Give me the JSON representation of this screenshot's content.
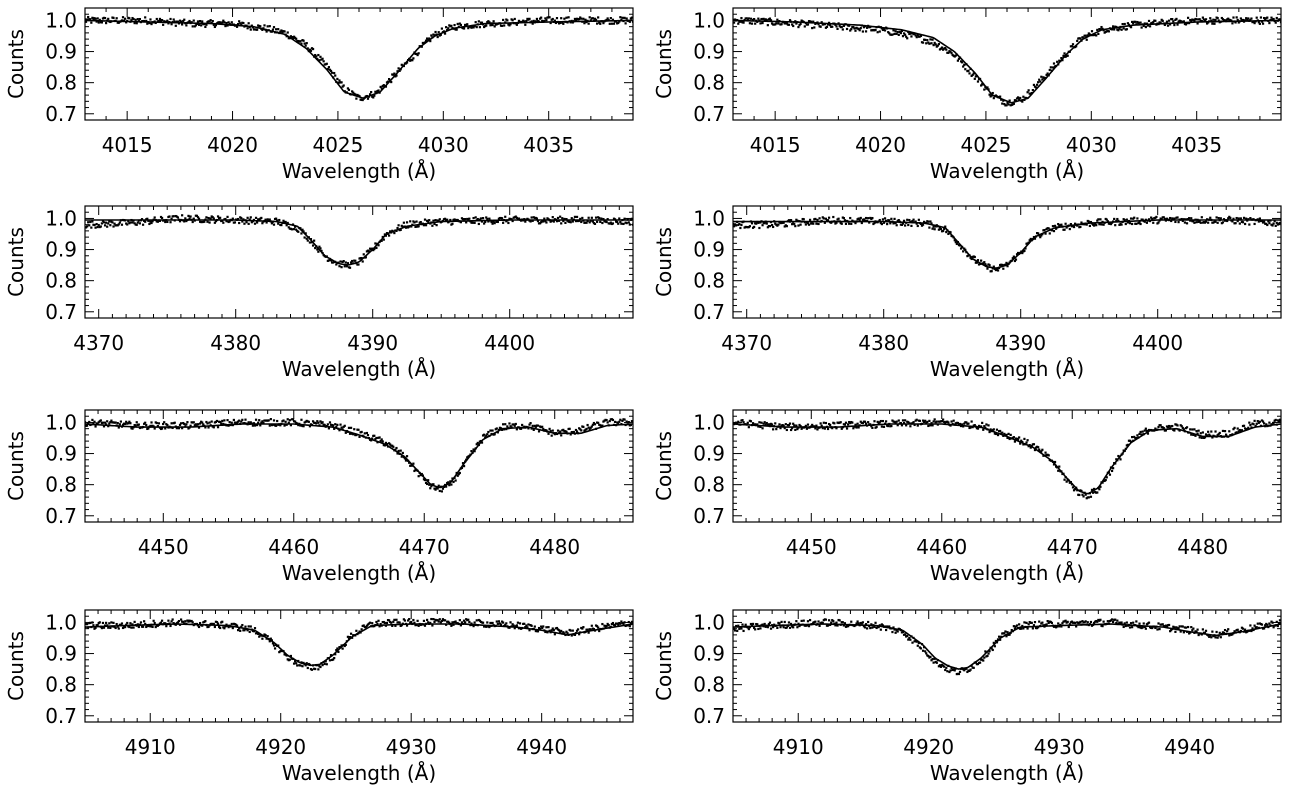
{
  "chart_data": [
    {
      "type": "line",
      "panel": "row1-left",
      "xlabel": "Wavelength (Å)",
      "ylabel": "Counts",
      "xlim": [
        4013,
        4039
      ],
      "ylim": [
        0.68,
        1.04
      ],
      "xticks": [
        4015,
        4020,
        4025,
        4030,
        4035
      ],
      "yticks": [
        0.7,
        0.8,
        0.9,
        1.0
      ],
      "series": [
        {
          "style": "points",
          "x": [
            4013.5,
            4016,
            4018,
            4020,
            4021.5,
            4022.5,
            4023.5,
            4024.5,
            4025.3,
            4026,
            4026.8,
            4027.5,
            4028.5,
            4029.5,
            4030.5,
            4032,
            4035,
            4039
          ],
          "y": [
            1.0,
            1.0,
            0.99,
            0.99,
            0.975,
            0.96,
            0.92,
            0.85,
            0.78,
            0.75,
            0.765,
            0.81,
            0.88,
            0.95,
            0.98,
            0.99,
            1.0,
            1.0
          ]
        },
        {
          "style": "line",
          "x": [
            4013,
            4016,
            4019,
            4021,
            4022.5,
            4023.5,
            4024.5,
            4025.3,
            4026.2,
            4027,
            4027.8,
            4028.8,
            4029.6,
            4030.5,
            4032,
            4035,
            4039
          ],
          "y": [
            1.0,
            0.995,
            0.99,
            0.98,
            0.955,
            0.91,
            0.84,
            0.77,
            0.75,
            0.77,
            0.83,
            0.91,
            0.95,
            0.975,
            0.99,
            0.995,
            1.0
          ]
        }
      ]
    },
    {
      "type": "line",
      "panel": "row1-right",
      "xlabel": "Wavelength (Å)",
      "ylabel": "Counts",
      "xlim": [
        4013,
        4039
      ],
      "ylim": [
        0.68,
        1.04
      ],
      "xticks": [
        4015,
        4020,
        4025,
        4030,
        4035
      ],
      "yticks": [
        0.7,
        0.8,
        0.9,
        1.0
      ],
      "series": [
        {
          "style": "points",
          "x": [
            4013.5,
            4016,
            4018,
            4020,
            4021.5,
            4022.5,
            4023.5,
            4024.5,
            4025.3,
            4026,
            4026.8,
            4027.5,
            4028.5,
            4029.5,
            4030.5,
            4032,
            4035,
            4039
          ],
          "y": [
            1.0,
            0.99,
            0.98,
            0.97,
            0.95,
            0.93,
            0.89,
            0.82,
            0.76,
            0.735,
            0.75,
            0.8,
            0.87,
            0.94,
            0.97,
            0.985,
            1.0,
            1.0
          ]
        },
        {
          "style": "line",
          "x": [
            4013,
            4016,
            4019,
            4021,
            4022.5,
            4023.5,
            4024.5,
            4025.3,
            4026.2,
            4027,
            4027.8,
            4028.8,
            4029.6,
            4030.5,
            4032,
            4035,
            4039
          ],
          "y": [
            1.0,
            0.995,
            0.985,
            0.97,
            0.945,
            0.9,
            0.83,
            0.76,
            0.735,
            0.75,
            0.81,
            0.89,
            0.94,
            0.97,
            0.985,
            0.995,
            1.0
          ]
        }
      ]
    },
    {
      "type": "line",
      "panel": "row2-left",
      "xlabel": "Wavelength (Å)",
      "ylabel": "Counts",
      "xlim": [
        4369,
        4409
      ],
      "ylim": [
        0.68,
        1.04
      ],
      "xticks": [
        4370,
        4380,
        4390,
        4400
      ],
      "yticks": [
        0.7,
        0.8,
        0.9,
        1.0
      ],
      "series": [
        {
          "style": "points",
          "x": [
            4369,
            4372,
            4376,
            4380,
            4383,
            4384.5,
            4385.5,
            4386.5,
            4387.5,
            4388.2,
            4389,
            4390,
            4391,
            4392.5,
            4395,
            4400,
            4405,
            4409
          ],
          "y": [
            0.98,
            0.985,
            1.0,
            0.995,
            0.99,
            0.97,
            0.93,
            0.88,
            0.855,
            0.85,
            0.86,
            0.9,
            0.95,
            0.98,
            0.99,
            0.995,
            0.995,
            0.99
          ]
        },
        {
          "style": "line",
          "x": [
            4369,
            4375,
            4380,
            4383,
            4384.5,
            4385.5,
            4386.5,
            4387.5,
            4388.2,
            4389,
            4390,
            4391,
            4392.5,
            4395,
            4400,
            4409
          ],
          "y": [
            0.995,
            0.995,
            0.995,
            0.99,
            0.975,
            0.93,
            0.88,
            0.855,
            0.85,
            0.86,
            0.9,
            0.95,
            0.975,
            0.99,
            0.995,
            0.995
          ]
        }
      ]
    },
    {
      "type": "line",
      "panel": "row2-right",
      "xlabel": "Wavelength (Å)",
      "ylabel": "Counts",
      "xlim": [
        4369,
        4409
      ],
      "ylim": [
        0.68,
        1.04
      ],
      "xticks": [
        4370,
        4380,
        4390,
        4400
      ],
      "yticks": [
        0.7,
        0.8,
        0.9,
        1.0
      ],
      "series": [
        {
          "style": "points",
          "x": [
            4369,
            4372,
            4376,
            4380,
            4383,
            4384.5,
            4385.5,
            4386.5,
            4387.5,
            4388.2,
            4389,
            4390,
            4391,
            4392.5,
            4395,
            4400,
            4405,
            4409
          ],
          "y": [
            0.98,
            0.98,
            0.995,
            0.99,
            0.985,
            0.965,
            0.92,
            0.87,
            0.845,
            0.835,
            0.85,
            0.89,
            0.94,
            0.97,
            0.985,
            0.995,
            0.995,
            0.985
          ]
        },
        {
          "style": "line",
          "x": [
            4369,
            4375,
            4380,
            4383,
            4384.5,
            4385.5,
            4386.5,
            4387.5,
            4388.2,
            4389,
            4390,
            4391,
            4392.5,
            4395,
            4400,
            4409
          ],
          "y": [
            0.99,
            0.99,
            0.99,
            0.985,
            0.97,
            0.92,
            0.87,
            0.845,
            0.84,
            0.85,
            0.89,
            0.94,
            0.97,
            0.985,
            0.995,
            0.995
          ]
        }
      ]
    },
    {
      "type": "line",
      "panel": "row3-left",
      "xlabel": "Wavelength (Å)",
      "ylabel": "Counts",
      "xlim": [
        4444,
        4486
      ],
      "ylim": [
        0.68,
        1.04
      ],
      "xticks": [
        4450,
        4460,
        4470,
        4480
      ],
      "yticks": [
        0.7,
        0.8,
        0.9,
        1.0
      ],
      "series": [
        {
          "style": "points",
          "x": [
            4444,
            4448,
            4452,
            4456,
            4460,
            4463,
            4465,
            4467,
            4468.5,
            4469.5,
            4470.5,
            4471.2,
            4472,
            4473,
            4474.5,
            4476,
            4478,
            4480,
            4482,
            4484,
            4486
          ],
          "y": [
            1.0,
            0.99,
            0.99,
            1.0,
            1.0,
            0.99,
            0.965,
            0.935,
            0.89,
            0.84,
            0.795,
            0.785,
            0.8,
            0.86,
            0.95,
            0.985,
            0.99,
            0.965,
            0.975,
            1.0,
            1.0
          ]
        },
        {
          "style": "line",
          "x": [
            4444,
            4448,
            4452,
            4456,
            4460,
            4463,
            4465,
            4467,
            4468.5,
            4469.5,
            4470.5,
            4471.2,
            4472,
            4473,
            4474.5,
            4476,
            4478,
            4480,
            4482,
            4484,
            4486
          ],
          "y": [
            0.995,
            0.985,
            0.985,
            0.995,
            0.995,
            0.985,
            0.96,
            0.93,
            0.89,
            0.845,
            0.8,
            0.79,
            0.805,
            0.865,
            0.945,
            0.98,
            0.985,
            0.965,
            0.965,
            0.99,
            0.995
          ]
        }
      ]
    },
    {
      "type": "line",
      "panel": "row3-right",
      "xlabel": "Wavelength (Å)",
      "ylabel": "Counts",
      "xlim": [
        4444,
        4486
      ],
      "ylim": [
        0.68,
        1.04
      ],
      "xticks": [
        4450,
        4460,
        4470,
        4480
      ],
      "yticks": [
        0.7,
        0.8,
        0.9,
        1.0
      ],
      "series": [
        {
          "style": "points",
          "x": [
            4444,
            4448,
            4452,
            4456,
            4460,
            4463,
            4465,
            4467,
            4468.5,
            4469.5,
            4470.5,
            4471.2,
            4472,
            4473,
            4474.5,
            4476,
            4478,
            4480,
            4482,
            4484,
            4486
          ],
          "y": [
            1.0,
            0.985,
            0.99,
            0.995,
            1.0,
            0.99,
            0.96,
            0.925,
            0.875,
            0.82,
            0.775,
            0.765,
            0.785,
            0.85,
            0.94,
            0.98,
            0.985,
            0.96,
            0.965,
            0.995,
            1.0
          ]
        },
        {
          "style": "line",
          "x": [
            4444,
            4448,
            4452,
            4456,
            4460,
            4463,
            4465,
            4467,
            4468.5,
            4469.5,
            4470.5,
            4471.2,
            4472,
            4473,
            4474.5,
            4476,
            4478,
            4480,
            4482,
            4484,
            4486
          ],
          "y": [
            0.995,
            0.985,
            0.985,
            0.995,
            0.995,
            0.985,
            0.955,
            0.92,
            0.875,
            0.825,
            0.78,
            0.77,
            0.79,
            0.855,
            0.935,
            0.975,
            0.98,
            0.955,
            0.955,
            0.985,
            0.995
          ]
        }
      ]
    },
    {
      "type": "line",
      "panel": "row4-left",
      "xlabel": "Wavelength (Å)",
      "ylabel": "Counts",
      "xlim": [
        4905,
        4947
      ],
      "ylim": [
        0.68,
        1.04
      ],
      "xticks": [
        4910,
        4920,
        4930,
        4940
      ],
      "yticks": [
        0.7,
        0.8,
        0.9,
        1.0
      ],
      "series": [
        {
          "style": "points",
          "x": [
            4905,
            4908,
            4912,
            4916,
            4918,
            4919.5,
            4920.5,
            4921.5,
            4922.3,
            4923,
            4924,
            4925.5,
            4927,
            4930,
            4934,
            4938,
            4940,
            4942,
            4944,
            4947
          ],
          "y": [
            0.99,
            0.99,
            1.0,
            0.99,
            0.975,
            0.93,
            0.89,
            0.865,
            0.855,
            0.86,
            0.89,
            0.96,
            0.995,
            1.0,
            1.0,
            0.99,
            0.98,
            0.965,
            0.98,
            1.0
          ]
        },
        {
          "style": "line",
          "x": [
            4905,
            4908,
            4912,
            4916,
            4918,
            4919.5,
            4920.5,
            4921.5,
            4922.3,
            4923,
            4924,
            4925.5,
            4927,
            4930,
            4934,
            4938,
            4940,
            4942,
            4944,
            4947
          ],
          "y": [
            0.985,
            0.99,
            0.995,
            0.99,
            0.975,
            0.935,
            0.895,
            0.87,
            0.862,
            0.865,
            0.895,
            0.955,
            0.99,
            0.995,
            0.995,
            0.985,
            0.975,
            0.96,
            0.975,
            0.995
          ]
        }
      ]
    },
    {
      "type": "line",
      "panel": "row4-right",
      "xlabel": "Wavelength (Å)",
      "ylabel": "Counts",
      "xlim": [
        4905,
        4947
      ],
      "ylim": [
        0.68,
        1.04
      ],
      "xticks": [
        4910,
        4920,
        4930,
        4940
      ],
      "yticks": [
        0.7,
        0.8,
        0.9,
        1.0
      ],
      "series": [
        {
          "style": "points",
          "x": [
            4905,
            4908,
            4912,
            4916,
            4918,
            4919.5,
            4920.5,
            4921.5,
            4922.3,
            4923,
            4924,
            4925.5,
            4927,
            4930,
            4934,
            4938,
            4940,
            4942,
            4944,
            4947
          ],
          "y": [
            0.98,
            0.99,
            1.0,
            0.99,
            0.97,
            0.92,
            0.875,
            0.85,
            0.84,
            0.85,
            0.88,
            0.95,
            0.99,
            0.995,
            1.0,
            0.985,
            0.975,
            0.96,
            0.975,
            1.0
          ]
        },
        {
          "style": "line",
          "x": [
            4905,
            4908,
            4912,
            4916,
            4918,
            4919.5,
            4920.5,
            4921.5,
            4922.3,
            4923,
            4924,
            4925.5,
            4927,
            4930,
            4934,
            4938,
            4940,
            4942,
            4944,
            4947
          ],
          "y": [
            0.985,
            0.99,
            0.995,
            0.99,
            0.975,
            0.93,
            0.885,
            0.86,
            0.85,
            0.855,
            0.885,
            0.95,
            0.985,
            0.99,
            0.995,
            0.985,
            0.97,
            0.958,
            0.97,
            0.995
          ]
        }
      ]
    }
  ]
}
